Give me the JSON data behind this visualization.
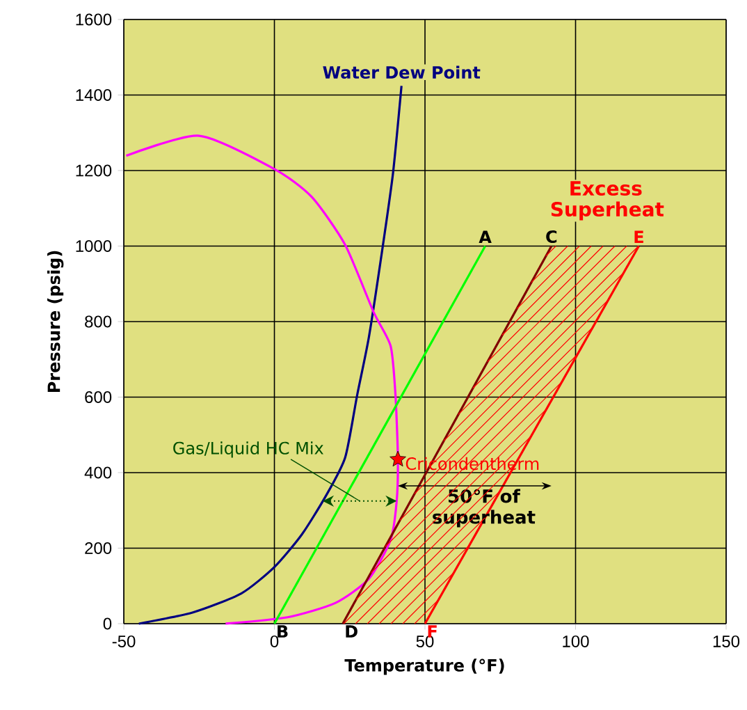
{
  "chart_data": {
    "type": "line",
    "xlabel": "Temperature (°F)",
    "ylabel": "Pressure (psig)",
    "xlim": [
      -50,
      150
    ],
    "xticks": [
      -50,
      0,
      50,
      100,
      150
    ],
    "ylim": [
      0,
      1600
    ],
    "yticks": [
      0,
      200,
      400,
      600,
      800,
      1000,
      1200,
      1400,
      1600
    ],
    "grid": true,
    "marker": "none",
    "line_style": "solid",
    "series": [
      {
        "name": "Water Dew Point",
        "color": "#000080",
        "x": [
          -45,
          -27,
          -11,
          0,
          9,
          17,
          23.5,
          27.5,
          31.4,
          36,
          39.4,
          42.2
        ],
        "values": [
          0,
          30,
          80,
          150,
          235,
          337,
          440,
          606,
          760,
          1000,
          1194,
          1424
        ]
      },
      {
        "color": "#ff00ff",
        "x": [
          -49.2,
          -25,
          0,
          12.4,
          23.5,
          33,
          38.6,
          40.2,
          41,
          40.6,
          38.6,
          31.4,
          20.3,
          4.4,
          -16.2
        ],
        "values": [
          1239,
          1292,
          1204,
          1130,
          1003,
          824,
          735,
          606,
          440,
          324,
          222,
          119,
          55,
          17,
          0
        ]
      },
      {
        "color": "#00ff00",
        "x": [
          0,
          70
        ],
        "values": [
          0,
          1000
        ]
      },
      {
        "color": "#800000",
        "x": [
          22.7,
          92
        ],
        "values": [
          0,
          1000
        ]
      },
      {
        "color": "#ff0000",
        "x": [
          50,
          121
        ],
        "values": [
          0,
          1000
        ]
      },
      {
        "name": "Cricondentherm",
        "type": "scatter",
        "marker": "star",
        "color": "#ff0000",
        "x": [
          41
        ],
        "values": [
          435
        ]
      }
    ],
    "annotations": [
      "Gas/Liquid HC Mix",
      "Excess Superheat",
      "50°F of superheat",
      {
        "text": "A",
        "x": 70,
        "y": 1000
      },
      {
        "text": "B",
        "x": 0,
        "y": 0
      },
      {
        "text": "C",
        "x": 92,
        "y": 1000
      },
      {
        "text": "D",
        "x": 22.7,
        "y": 0
      },
      {
        "text": "E",
        "x": 121,
        "y": 1000
      },
      {
        "text": "F",
        "x": 50,
        "y": 0
      }
    ]
  }
}
